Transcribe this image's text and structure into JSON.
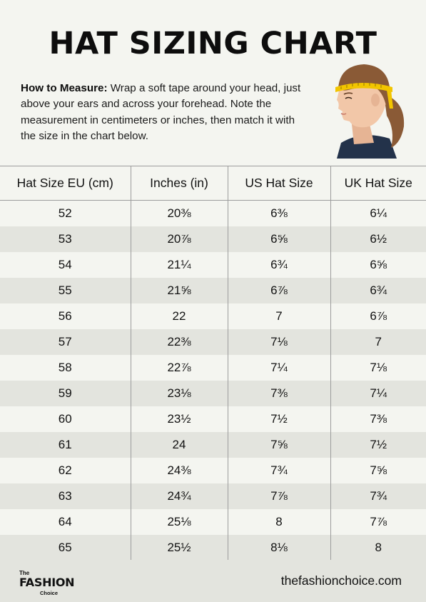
{
  "title": "HAT SIZING CHART",
  "instructions": {
    "label": "How to Measure:",
    "text": " Wrap a soft tape around your head, just above your ears and across your forehead. Note the measurement in centimeters or inches, then match it with the size in the chart below."
  },
  "illustration": {
    "icon": "head-measuring-tape-illustration",
    "skin": "#f2c7a8",
    "hair": "#8a5a36",
    "tape": "#f2c500",
    "shirt": "#23324a"
  },
  "table": {
    "headers": [
      "Hat Size EU (cm)",
      "Inches (in)",
      "US Hat Size",
      "UK Hat Size"
    ],
    "rows": [
      [
        "52",
        "20⅜",
        "6⅜",
        "6¼"
      ],
      [
        "53",
        "20⅞",
        "6⅝",
        "6½"
      ],
      [
        "54",
        "21¼",
        "6¾",
        "6⅝"
      ],
      [
        "55",
        "21⅝",
        "6⅞",
        "6¾"
      ],
      [
        "56",
        "22",
        "7",
        "6⅞"
      ],
      [
        "57",
        "22⅜",
        "7⅛",
        "7"
      ],
      [
        "58",
        "22⅞",
        "7¼",
        "7⅛"
      ],
      [
        "59",
        "23⅛",
        "7⅜",
        "7¼"
      ],
      [
        "60",
        "23½",
        "7½",
        "7⅜"
      ],
      [
        "61",
        "24",
        "7⅝",
        "7½"
      ],
      [
        "62",
        "24⅜",
        "7¾",
        "7⅝"
      ],
      [
        "63",
        "24¾",
        "7⅞",
        "7¾"
      ],
      [
        "64",
        "25⅛",
        "8",
        "7⅞"
      ],
      [
        "65",
        "25½",
        "8⅛",
        "8"
      ]
    ]
  },
  "footer": {
    "logo": {
      "the": "The",
      "fashion": "FASHION",
      "choice": "Choice"
    },
    "website": "thefashionchoice.com"
  }
}
